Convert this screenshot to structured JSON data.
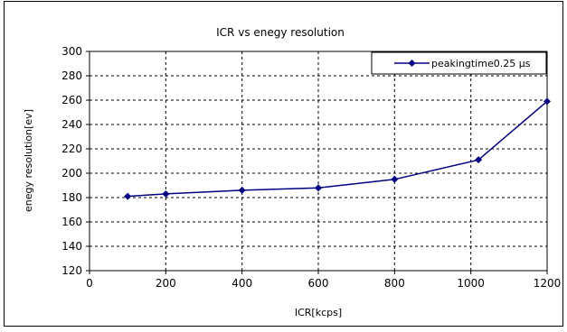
{
  "chart_data": {
    "type": "line",
    "title": "ICR vs enegy resolution",
    "xlabel": "ICR[kcps]",
    "ylabel": "enegy resolution[ev]",
    "xlim": [
      0,
      1200
    ],
    "ylim": [
      120,
      300
    ],
    "x_ticks": [
      "0",
      "200",
      "400",
      "600",
      "800",
      "1000",
      "1200"
    ],
    "y_ticks": [
      "120",
      "140",
      "160",
      "180",
      "200",
      "220",
      "240",
      "260",
      "280",
      "300"
    ],
    "grid": true,
    "legend_position": "top-right",
    "series": [
      {
        "name": "peakingtime0.25 μs",
        "color": "#000080",
        "marker": "diamond",
        "x": [
          100,
          200,
          400,
          600,
          800,
          1020,
          1200
        ],
        "y": [
          181,
          183,
          186,
          188,
          195,
          211,
          259
        ]
      }
    ]
  }
}
